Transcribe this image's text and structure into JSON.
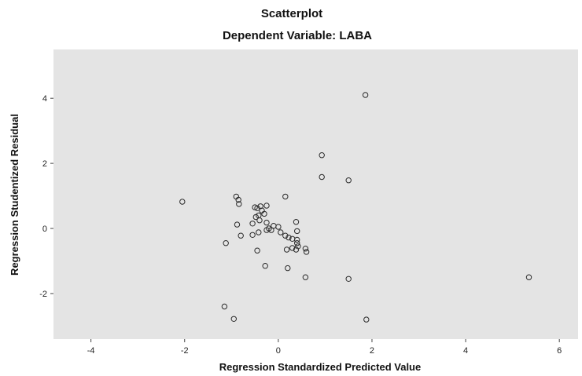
{
  "chart_data": {
    "type": "scatter",
    "title": "Scatterplot",
    "subtitle": "Dependent Variable: LABA",
    "xlabel": "Regression Standardized Predicted Value",
    "ylabel": "Regression Studentized Residual",
    "xlim": [
      -4.8,
      6.4
    ],
    "ylim": [
      -3.4,
      5.5
    ],
    "xticks": [
      -4,
      -2,
      0,
      2,
      4,
      6
    ],
    "yticks": [
      -2,
      0,
      2,
      4
    ],
    "xtick_labels": [
      "-4",
      "-2",
      "0",
      "2",
      "4",
      "6"
    ],
    "ytick_labels": [
      "-2",
      "0",
      "2",
      "4"
    ],
    "grid": false,
    "colors": {
      "plot_bg": "#e4e4e4",
      "marker": "#2a2a2a",
      "page_bg": "#ffffff"
    },
    "points": [
      {
        "x": 1.86,
        "y": 4.1
      },
      {
        "x": 0.93,
        "y": 2.25
      },
      {
        "x": 0.93,
        "y": 1.58
      },
      {
        "x": 1.5,
        "y": 1.48
      },
      {
        "x": 0.15,
        "y": 0.98
      },
      {
        "x": -2.05,
        "y": 0.82
      },
      {
        "x": -0.9,
        "y": 0.98
      },
      {
        "x": -0.85,
        "y": 0.88
      },
      {
        "x": -0.84,
        "y": 0.75
      },
      {
        "x": -0.5,
        "y": 0.65
      },
      {
        "x": -0.45,
        "y": 0.62
      },
      {
        "x": -0.38,
        "y": 0.68
      },
      {
        "x": -0.35,
        "y": 0.55
      },
      {
        "x": -0.3,
        "y": 0.45
      },
      {
        "x": -0.25,
        "y": 0.7
      },
      {
        "x": -0.48,
        "y": 0.35
      },
      {
        "x": -0.42,
        "y": 0.4
      },
      {
        "x": -0.4,
        "y": 0.25
      },
      {
        "x": -0.55,
        "y": 0.15
      },
      {
        "x": -0.88,
        "y": 0.12
      },
      {
        "x": -0.25,
        "y": 0.18
      },
      {
        "x": -0.2,
        "y": 0.0
      },
      {
        "x": -0.15,
        "y": -0.05
      },
      {
        "x": -0.1,
        "y": 0.08
      },
      {
        "x": 0.0,
        "y": 0.05
      },
      {
        "x": 0.05,
        "y": -0.12
      },
      {
        "x": 0.15,
        "y": -0.22
      },
      {
        "x": 0.22,
        "y": -0.28
      },
      {
        "x": 0.3,
        "y": -0.32
      },
      {
        "x": 0.38,
        "y": 0.2
      },
      {
        "x": 0.4,
        "y": -0.08
      },
      {
        "x": 0.4,
        "y": -0.35
      },
      {
        "x": 0.4,
        "y": -0.45
      },
      {
        "x": 0.42,
        "y": -0.55
      },
      {
        "x": 0.38,
        "y": -0.65
      },
      {
        "x": 0.3,
        "y": -0.6
      },
      {
        "x": 0.18,
        "y": -0.65
      },
      {
        "x": 0.58,
        "y": -0.62
      },
      {
        "x": 0.6,
        "y": -0.72
      },
      {
        "x": -0.25,
        "y": -0.05
      },
      {
        "x": -0.42,
        "y": -0.12
      },
      {
        "x": -0.55,
        "y": -0.2
      },
      {
        "x": -0.8,
        "y": -0.22
      },
      {
        "x": -1.12,
        "y": -0.45
      },
      {
        "x": -0.45,
        "y": -0.68
      },
      {
        "x": -0.28,
        "y": -1.15
      },
      {
        "x": 0.2,
        "y": -1.22
      },
      {
        "x": 0.58,
        "y": -1.5
      },
      {
        "x": 1.5,
        "y": -1.55
      },
      {
        "x": 5.35,
        "y": -1.5
      },
      {
        "x": -1.15,
        "y": -2.4
      },
      {
        "x": -0.95,
        "y": -2.78
      },
      {
        "x": 1.88,
        "y": -2.8
      }
    ]
  }
}
